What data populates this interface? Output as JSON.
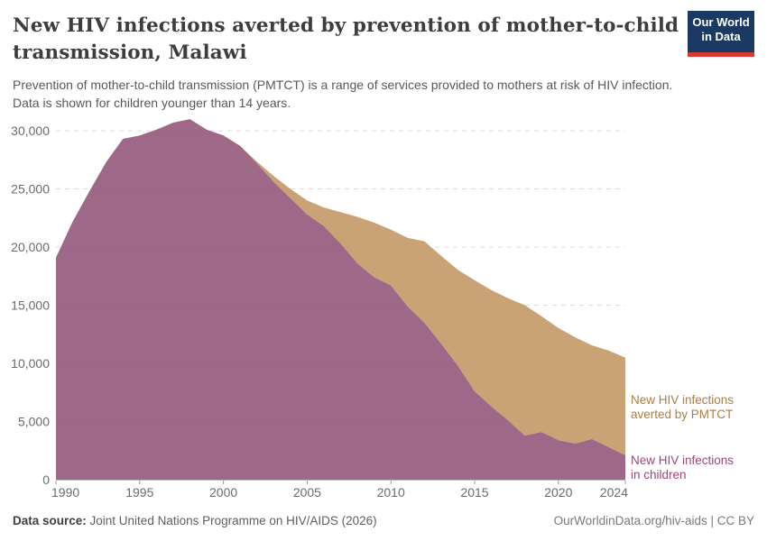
{
  "header": {
    "title_lines": [
      "New HIV infections averted by prevention of mother-to-child",
      "transmission, Malawi"
    ],
    "subtitle_lines": [
      "Prevention of mother-to-child transmission (PMTCT) is a range of services provided to mothers at risk of HIV infection.",
      "Data is shown for children younger than 14 years."
    ],
    "logo": {
      "line1": "Our World",
      "line2": "in Data",
      "bg_color": "#1a3a63",
      "bar_color": "#dc3832"
    }
  },
  "chart_data": {
    "type": "area",
    "stacked": true,
    "title": "New HIV infections averted by prevention of mother-to-child transmission, Malawi",
    "xlabel": "",
    "ylabel": "",
    "grid": "dashed-horizontal",
    "legend_position": "right-of-plot",
    "xlim": [
      1990,
      2024
    ],
    "ylim": [
      0,
      31000
    ],
    "xticks": [
      1990,
      1995,
      2000,
      2005,
      2010,
      2015,
      2020,
      2024
    ],
    "yticks": [
      0,
      5000,
      10000,
      15000,
      20000,
      25000,
      30000
    ],
    "x": [
      1990,
      1991,
      1992,
      1993,
      1994,
      1995,
      1996,
      1997,
      1998,
      1999,
      2000,
      2001,
      2002,
      2003,
      2004,
      2005,
      2006,
      2007,
      2008,
      2009,
      2010,
      2011,
      2012,
      2013,
      2014,
      2015,
      2016,
      2017,
      2018,
      2019,
      2020,
      2021,
      2022,
      2023,
      2024
    ],
    "series": [
      {
        "name": "New HIV infections in children",
        "label_lines": [
          "New HIV infections",
          "in children"
        ],
        "fill_color": "#8d4d73",
        "fill_opacity": 0.85,
        "label_color": "#9a4678",
        "values": [
          19100,
          22200,
          24800,
          27300,
          29300,
          29600,
          30100,
          30700,
          31000,
          30100,
          29600,
          28700,
          27200,
          25600,
          24200,
          22800,
          21800,
          20300,
          18600,
          17400,
          16700,
          14900,
          13500,
          11700,
          9800,
          7600,
          6300,
          5100,
          3800,
          4100,
          3400,
          3100,
          3500,
          2800,
          2100
        ]
      },
      {
        "name": "New HIV infections averted by PMTCT",
        "label_lines": [
          "New HIV infections",
          "averted by PMTCT"
        ],
        "fill_color": "#bf935d",
        "fill_opacity": 0.85,
        "label_color": "#ac7d41",
        "values": [
          0,
          0,
          0,
          0,
          0,
          0,
          0,
          0,
          0,
          0,
          0,
          0,
          150,
          500,
          800,
          1200,
          1600,
          2700,
          4000,
          4700,
          4800,
          5900,
          7000,
          7550,
          8250,
          9550,
          10000,
          10500,
          11200,
          9950,
          9650,
          9150,
          8050,
          8300,
          8400
        ]
      }
    ],
    "axis_colors": {
      "gridline": "#dcdcdc",
      "axis_line": "#bcbcbc",
      "tick_mark": "#999999",
      "tick_label": "#6b6b6b"
    }
  },
  "footer": {
    "source_label": "Data source:",
    "source_text": " Joint United Nations Programme on HIV/AIDS (2026)",
    "credit": "OurWorldinData.org/hiv-aids | CC BY"
  }
}
